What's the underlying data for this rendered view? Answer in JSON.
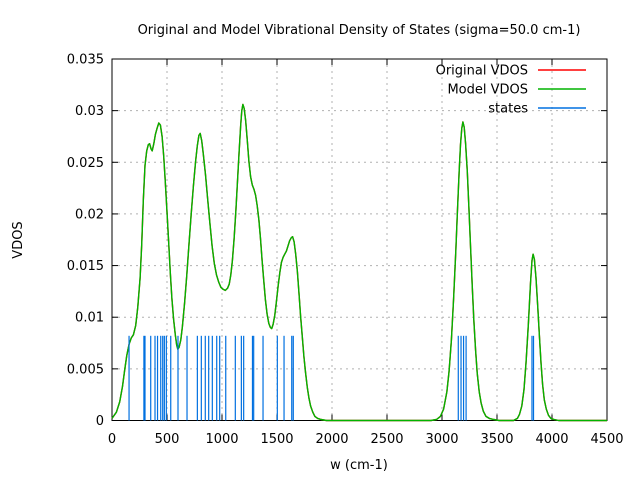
{
  "chart": {
    "title": "Original and Model Vibrational Density of States (sigma=50.0 cm-1)",
    "xlabel": "w (cm-1)",
    "ylabel": "VDOS"
  },
  "chart_data": {
    "type": "line",
    "title": "Original and Model Vibrational Density of States (sigma=50.0 cm-1)",
    "xlabel": "w (cm-1)",
    "ylabel": "VDOS",
    "xlim": [
      0,
      4500
    ],
    "ylim": [
      0,
      0.035
    ],
    "xticks": [
      0,
      500,
      1000,
      1500,
      2000,
      2500,
      3000,
      3500,
      4000,
      4500
    ],
    "yticks": [
      0,
      0.005,
      0.01,
      0.015,
      0.02,
      0.025,
      0.03,
      0.035
    ],
    "ytick_labels": [
      "0",
      "0.005",
      "0.01",
      "0.015",
      "0.02",
      "0.025",
      "0.03",
      "0.035"
    ],
    "grid": true,
    "grid_color": "#b0b0b0",
    "legend_position": "top-right",
    "series": [
      {
        "name": "Original VDOS",
        "type": "line",
        "color": "#ff0000",
        "points_ref": "model_curve",
        "note_visible": false
      },
      {
        "name": "Model VDOS",
        "type": "line",
        "color": "#00b400",
        "points_ref": "model_curve"
      },
      {
        "name": "states",
        "type": "impulses",
        "color": "#0070e0",
        "height": 0.0082,
        "x": [
          155,
          290,
          300,
          352,
          391,
          414,
          443,
          461,
          476,
          494,
          534,
          600,
          682,
          776,
          812,
          848,
          879,
          912,
          952,
          979,
          1034,
          1121,
          1176,
          1197,
          1277,
          1288,
          1373,
          1503,
          1564,
          1634,
          1648,
          3148,
          3173,
          3196,
          3219,
          3818,
          3832
        ]
      }
    ],
    "sigma_cm1": 50.0,
    "model_curve": [
      [
        0,
        0.0002
      ],
      [
        40,
        0.0008
      ],
      [
        70,
        0.0018
      ],
      [
        95,
        0.0033
      ],
      [
        115,
        0.0049
      ],
      [
        135,
        0.0063
      ],
      [
        155,
        0.0074
      ],
      [
        175,
        0.008
      ],
      [
        195,
        0.0083
      ],
      [
        215,
        0.0092
      ],
      [
        235,
        0.011
      ],
      [
        255,
        0.0138
      ],
      [
        270,
        0.017
      ],
      [
        285,
        0.0213
      ],
      [
        300,
        0.0247
      ],
      [
        315,
        0.0261
      ],
      [
        330,
        0.0267
      ],
      [
        342,
        0.0268
      ],
      [
        355,
        0.0263
      ],
      [
        365,
        0.0261
      ],
      [
        380,
        0.0268
      ],
      [
        395,
        0.0277
      ],
      [
        410,
        0.0283
      ],
      [
        425,
        0.0288
      ],
      [
        440,
        0.0286
      ],
      [
        455,
        0.0275
      ],
      [
        470,
        0.0256
      ],
      [
        485,
        0.0231
      ],
      [
        500,
        0.0202
      ],
      [
        515,
        0.0172
      ],
      [
        530,
        0.0143
      ],
      [
        545,
        0.0118
      ],
      [
        560,
        0.0098
      ],
      [
        575,
        0.0083
      ],
      [
        588,
        0.0073
      ],
      [
        598,
        0.0069
      ],
      [
        610,
        0.0071
      ],
      [
        625,
        0.0078
      ],
      [
        640,
        0.0091
      ],
      [
        660,
        0.0114
      ],
      [
        680,
        0.0141
      ],
      [
        700,
        0.0171
      ],
      [
        720,
        0.02
      ],
      [
        740,
        0.0227
      ],
      [
        760,
        0.0251
      ],
      [
        775,
        0.0266
      ],
      [
        790,
        0.0276
      ],
      [
        802,
        0.0278
      ],
      [
        815,
        0.0271
      ],
      [
        830,
        0.0258
      ],
      [
        850,
        0.0238
      ],
      [
        870,
        0.0214
      ],
      [
        890,
        0.0191
      ],
      [
        910,
        0.0169
      ],
      [
        930,
        0.0152
      ],
      [
        950,
        0.0141
      ],
      [
        970,
        0.0134
      ],
      [
        990,
        0.0129
      ],
      [
        1010,
        0.0127
      ],
      [
        1030,
        0.0126
      ],
      [
        1050,
        0.0128
      ],
      [
        1065,
        0.0132
      ],
      [
        1080,
        0.0141
      ],
      [
        1095,
        0.0155
      ],
      [
        1110,
        0.0176
      ],
      [
        1125,
        0.0202
      ],
      [
        1140,
        0.023
      ],
      [
        1155,
        0.026
      ],
      [
        1170,
        0.0286
      ],
      [
        1180,
        0.03
      ],
      [
        1190,
        0.0306
      ],
      [
        1202,
        0.0302
      ],
      [
        1215,
        0.029
      ],
      [
        1230,
        0.0271
      ],
      [
        1245,
        0.0251
      ],
      [
        1260,
        0.0236
      ],
      [
        1275,
        0.0228
      ],
      [
        1290,
        0.0224
      ],
      [
        1305,
        0.0218
      ],
      [
        1320,
        0.0208
      ],
      [
        1335,
        0.0194
      ],
      [
        1350,
        0.0176
      ],
      [
        1365,
        0.0155
      ],
      [
        1380,
        0.0135
      ],
      [
        1395,
        0.0117
      ],
      [
        1410,
        0.0103
      ],
      [
        1425,
        0.0094
      ],
      [
        1440,
        0.009
      ],
      [
        1452,
        0.0089
      ],
      [
        1465,
        0.0093
      ],
      [
        1480,
        0.0102
      ],
      [
        1495,
        0.0115
      ],
      [
        1510,
        0.013
      ],
      [
        1525,
        0.0143
      ],
      [
        1540,
        0.0153
      ],
      [
        1555,
        0.0158
      ],
      [
        1570,
        0.0161
      ],
      [
        1585,
        0.0164
      ],
      [
        1600,
        0.0169
      ],
      [
        1615,
        0.0174
      ],
      [
        1630,
        0.0177
      ],
      [
        1642,
        0.0178
      ],
      [
        1655,
        0.0173
      ],
      [
        1670,
        0.0161
      ],
      [
        1685,
        0.0144
      ],
      [
        1700,
        0.0123
      ],
      [
        1715,
        0.0101
      ],
      [
        1730,
        0.0081
      ],
      [
        1745,
        0.0062
      ],
      [
        1760,
        0.0046
      ],
      [
        1775,
        0.0032
      ],
      [
        1790,
        0.0022
      ],
      [
        1805,
        0.0014
      ],
      [
        1825,
        0.0008
      ],
      [
        1845,
        0.0004
      ],
      [
        1870,
        0.0002
      ],
      [
        1900,
        0.0001
      ],
      [
        1950,
        0
      ],
      [
        2900,
        0
      ],
      [
        2950,
        0.0001
      ],
      [
        2985,
        0.0004
      ],
      [
        3015,
        0.0011
      ],
      [
        3045,
        0.0028
      ],
      [
        3065,
        0.0048
      ],
      [
        3085,
        0.0078
      ],
      [
        3105,
        0.0118
      ],
      [
        3125,
        0.0164
      ],
      [
        3140,
        0.0202
      ],
      [
        3155,
        0.024
      ],
      [
        3168,
        0.0267
      ],
      [
        3180,
        0.0283
      ],
      [
        3190,
        0.0289
      ],
      [
        3202,
        0.0284
      ],
      [
        3215,
        0.0268
      ],
      [
        3230,
        0.0241
      ],
      [
        3245,
        0.0206
      ],
      [
        3260,
        0.0167
      ],
      [
        3275,
        0.0129
      ],
      [
        3290,
        0.0096
      ],
      [
        3305,
        0.0068
      ],
      [
        3320,
        0.0046
      ],
      [
        3338,
        0.0028
      ],
      [
        3355,
        0.0017
      ],
      [
        3375,
        0.0009
      ],
      [
        3400,
        0.0004
      ],
      [
        3430,
        0.0002
      ],
      [
        3470,
        0.0001
      ],
      [
        3520,
        0
      ],
      [
        3650,
        0
      ],
      [
        3685,
        0.0002
      ],
      [
        3705,
        0.0006
      ],
      [
        3725,
        0.0014
      ],
      [
        3745,
        0.003
      ],
      [
        3765,
        0.0057
      ],
      [
        3785,
        0.0094
      ],
      [
        3805,
        0.0133
      ],
      [
        3818,
        0.0155
      ],
      [
        3828,
        0.0161
      ],
      [
        3840,
        0.0156
      ],
      [
        3855,
        0.0138
      ],
      [
        3870,
        0.0111
      ],
      [
        3885,
        0.0082
      ],
      [
        3900,
        0.0056
      ],
      [
        3915,
        0.0035
      ],
      [
        3930,
        0.002
      ],
      [
        3948,
        0.0011
      ],
      [
        3968,
        0.0005
      ],
      [
        3990,
        0.0002
      ],
      [
        4020,
        0.0001
      ],
      [
        4060,
        0
      ],
      [
        4500,
        0
      ]
    ]
  }
}
